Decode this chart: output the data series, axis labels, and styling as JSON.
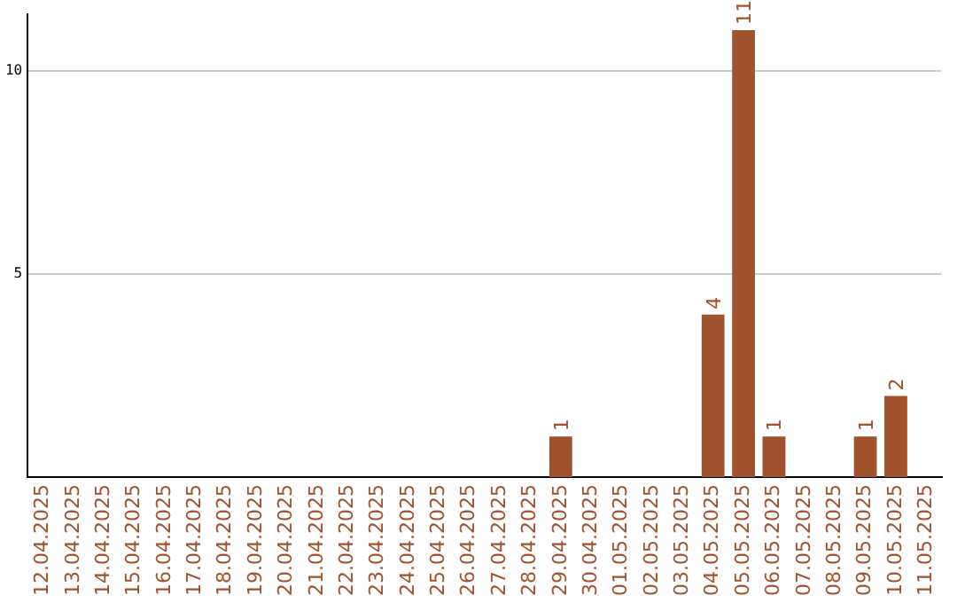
{
  "chart_data": {
    "type": "bar",
    "categories": [
      "12.04.2025",
      "13.04.2025",
      "14.04.2025",
      "15.04.2025",
      "16.04.2025",
      "17.04.2025",
      "18.04.2025",
      "19.04.2025",
      "20.04.2025",
      "21.04.2025",
      "22.04.2025",
      "23.04.2025",
      "24.04.2025",
      "25.04.2025",
      "26.04.2025",
      "27.04.2025",
      "28.04.2025",
      "29.04.2025",
      "30.04.2025",
      "01.05.2025",
      "02.05.2025",
      "03.05.2025",
      "04.05.2025",
      "05.05.2025",
      "06.05.2025",
      "07.05.2025",
      "08.05.2025",
      "09.05.2025",
      "10.05.2025",
      "11.05.2025"
    ],
    "values": [
      0,
      0,
      0,
      0,
      0,
      0,
      0,
      0,
      0,
      0,
      0,
      0,
      0,
      0,
      0,
      0,
      0,
      1,
      0,
      0,
      0,
      0,
      4,
      11,
      1,
      0,
      0,
      1,
      2,
      0
    ],
    "value_labels": [
      null,
      null,
      null,
      null,
      null,
      null,
      null,
      null,
      null,
      null,
      null,
      null,
      null,
      null,
      null,
      null,
      null,
      "1",
      null,
      null,
      null,
      null,
      "4",
      "11",
      "1",
      null,
      null,
      "1",
      "2",
      null
    ],
    "color": "#a0522d",
    "ylim": [
      0,
      11.4
    ],
    "yticks": [
      5,
      10
    ],
    "grid": "y",
    "legend": false
  }
}
